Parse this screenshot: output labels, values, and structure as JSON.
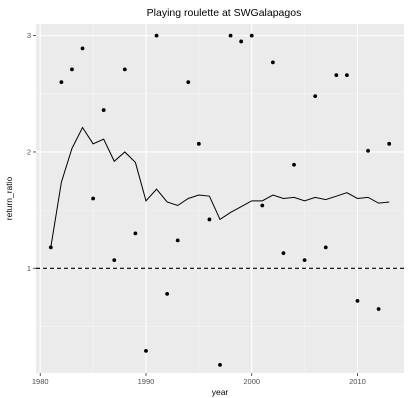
{
  "chart_data": {
    "type": "scatter",
    "title": "Playing roulette at SWGalapagos",
    "xlabel": "year",
    "ylabel": "return_ratio",
    "xlim": [
      1979.6,
      2014.4
    ],
    "ylim": [
      0.1,
      3.1
    ],
    "x_ticks": [
      1980,
      1990,
      2000,
      2010
    ],
    "y_ticks": [
      1,
      2,
      3
    ],
    "grid": true,
    "reference_line": {
      "y": 1,
      "style": "dashed"
    },
    "series": [
      {
        "type": "scatter",
        "points": [
          {
            "x": 1981,
            "y": 1.18
          },
          {
            "x": 1982,
            "y": 2.6
          },
          {
            "x": 1983,
            "y": 2.71
          },
          {
            "x": 1984,
            "y": 2.89
          },
          {
            "x": 1985,
            "y": 1.6
          },
          {
            "x": 1986,
            "y": 2.36
          },
          {
            "x": 1987,
            "y": 1.07
          },
          {
            "x": 1988,
            "y": 2.71
          },
          {
            "x": 1989,
            "y": 1.3
          },
          {
            "x": 1990,
            "y": 0.29
          },
          {
            "x": 1991,
            "y": 3.0
          },
          {
            "x": 1992,
            "y": 0.78
          },
          {
            "x": 1993,
            "y": 1.24
          },
          {
            "x": 1994,
            "y": 2.6
          },
          {
            "x": 1995,
            "y": 2.07
          },
          {
            "x": 1996,
            "y": 1.42
          },
          {
            "x": 1997,
            "y": 0.17
          },
          {
            "x": 1998,
            "y": 3.0
          },
          {
            "x": 1999,
            "y": 2.95
          },
          {
            "x": 2000,
            "y": 3.0
          },
          {
            "x": 2001,
            "y": 1.54
          },
          {
            "x": 2002,
            "y": 2.77
          },
          {
            "x": 2003,
            "y": 1.13
          },
          {
            "x": 2004,
            "y": 1.89
          },
          {
            "x": 2005,
            "y": 1.07
          },
          {
            "x": 2006,
            "y": 2.48
          },
          {
            "x": 2007,
            "y": 1.18
          },
          {
            "x": 2008,
            "y": 2.66
          },
          {
            "x": 2009,
            "y": 2.66
          },
          {
            "x": 2010,
            "y": 0.72
          },
          {
            "x": 2011,
            "y": 2.01
          },
          {
            "x": 2012,
            "y": 0.65
          },
          {
            "x": 2013,
            "y": 2.07
          }
        ]
      },
      {
        "type": "line",
        "points": [
          {
            "x": 1981,
            "y": 1.18
          },
          {
            "x": 1982,
            "y": 1.74
          },
          {
            "x": 1983,
            "y": 2.03
          },
          {
            "x": 1984,
            "y": 2.21
          },
          {
            "x": 1985,
            "y": 2.07
          },
          {
            "x": 1986,
            "y": 2.11
          },
          {
            "x": 1987,
            "y": 1.92
          },
          {
            "x": 1988,
            "y": 2.0
          },
          {
            "x": 1989,
            "y": 1.91
          },
          {
            "x": 1990,
            "y": 1.58
          },
          {
            "x": 1991,
            "y": 1.68
          },
          {
            "x": 1992,
            "y": 1.57
          },
          {
            "x": 1993,
            "y": 1.54
          },
          {
            "x": 1994,
            "y": 1.6
          },
          {
            "x": 1995,
            "y": 1.63
          },
          {
            "x": 1996,
            "y": 1.62
          },
          {
            "x": 1997,
            "y": 1.42
          },
          {
            "x": 1998,
            "y": 1.48
          },
          {
            "x": 1999,
            "y": 1.53
          },
          {
            "x": 2000,
            "y": 1.58
          },
          {
            "x": 2001,
            "y": 1.58
          },
          {
            "x": 2002,
            "y": 1.63
          },
          {
            "x": 2003,
            "y": 1.6
          },
          {
            "x": 2004,
            "y": 1.61
          },
          {
            "x": 2005,
            "y": 1.58
          },
          {
            "x": 2006,
            "y": 1.61
          },
          {
            "x": 2007,
            "y": 1.59
          },
          {
            "x": 2008,
            "y": 1.62
          },
          {
            "x": 2009,
            "y": 1.65
          },
          {
            "x": 2010,
            "y": 1.6
          },
          {
            "x": 2011,
            "y": 1.61
          },
          {
            "x": 2012,
            "y": 1.56
          },
          {
            "x": 2013,
            "y": 1.57
          }
        ]
      }
    ]
  }
}
